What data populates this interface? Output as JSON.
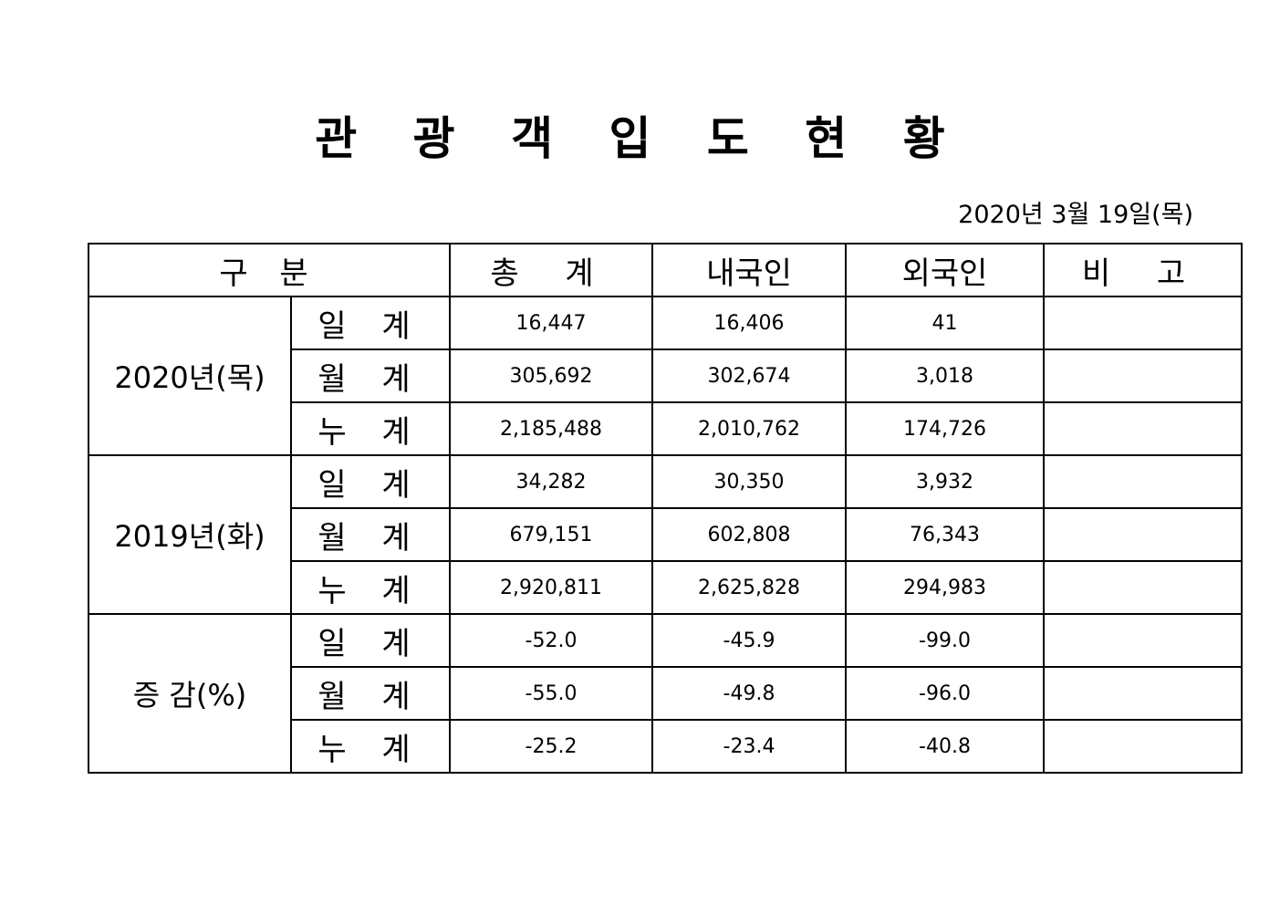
{
  "title": "관 광 객 입 도 현 황",
  "date": "2020년  3월  19일(목)",
  "table": {
    "headers": [
      "구  분",
      "총  계",
      "내국인",
      "외국인",
      "비  고"
    ],
    "groups": [
      {
        "label": "2020년(목)",
        "rows": [
          {
            "sub": "일 계",
            "values": [
              "16,447",
              "16,406",
              "41",
              ""
            ]
          },
          {
            "sub": "월 계",
            "values": [
              "305,692",
              "302,674",
              "3,018",
              ""
            ]
          },
          {
            "sub": "누 계",
            "values": [
              "2,185,488",
              "2,010,762",
              "174,726",
              ""
            ]
          }
        ]
      },
      {
        "label": "2019년(화)",
        "rows": [
          {
            "sub": "일 계",
            "values": [
              "34,282",
              "30,350",
              "3,932",
              ""
            ]
          },
          {
            "sub": "월 계",
            "values": [
              "679,151",
              "602,808",
              "76,343",
              ""
            ]
          },
          {
            "sub": "누 계",
            "values": [
              "2,920,811",
              "2,625,828",
              "294,983",
              ""
            ]
          }
        ]
      },
      {
        "label": "증 감(%)",
        "rows": [
          {
            "sub": "일 계",
            "values": [
              "-52.0",
              "-45.9",
              "-99.0",
              ""
            ]
          },
          {
            "sub": "월 계",
            "values": [
              "-55.0",
              "-49.8",
              "-96.0",
              ""
            ]
          },
          {
            "sub": "누 계",
            "values": [
              "-25.2",
              "-23.4",
              "-40.8",
              ""
            ]
          }
        ]
      }
    ]
  }
}
